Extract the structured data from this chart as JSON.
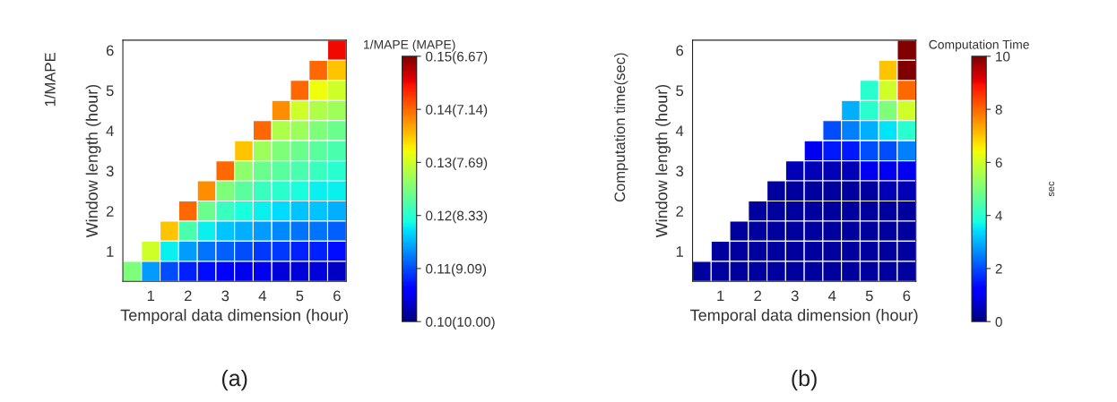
{
  "chart_data": [
    {
      "type": "heatmap",
      "title": "(a)",
      "xlabel": "Temporal data dimension (hour)",
      "ylabel": "Window length (hour)",
      "clabel": "1/MAPE (MAPE)",
      "annotations": [
        "1/MAPE"
      ],
      "categories": [
        null,
        "1",
        null,
        "2",
        null,
        "3",
        null,
        "4",
        null,
        "5",
        null,
        "6"
      ],
      "y_categories": [
        "6",
        null,
        "5",
        null,
        "4",
        null,
        "3",
        null,
        "2",
        null,
        "1",
        null
      ],
      "clim": [
        0.1,
        0.15
      ],
      "cticks": [
        {
          "value": 0.1,
          "label": "0.10(10.00)"
        },
        {
          "value": 0.11,
          "label": "0.11(9.09)"
        },
        {
          "value": 0.12,
          "label": "0.12(8.33)"
        },
        {
          "value": 0.13,
          "label": "0.13(7.69)"
        },
        {
          "value": 0.14,
          "label": "0.14(7.14)"
        },
        {
          "value": 0.15,
          "label": "0.15(6.67)"
        }
      ],
      "cells": [
        [
          null,
          null,
          null,
          null,
          null,
          null,
          null,
          null,
          null,
          null,
          null,
          0.145
        ],
        [
          null,
          null,
          null,
          null,
          null,
          null,
          null,
          null,
          null,
          null,
          0.14,
          0.135
        ],
        [
          null,
          null,
          null,
          null,
          null,
          null,
          null,
          null,
          null,
          0.14,
          0.132,
          0.13
        ],
        [
          null,
          null,
          null,
          null,
          null,
          null,
          null,
          null,
          0.138,
          0.13,
          0.128,
          0.127
        ],
        [
          null,
          null,
          null,
          null,
          null,
          null,
          null,
          0.14,
          0.128,
          0.127,
          0.125,
          0.124
        ],
        [
          null,
          null,
          null,
          null,
          null,
          null,
          0.135,
          0.127,
          0.125,
          0.124,
          0.123,
          0.122
        ],
        [
          null,
          null,
          null,
          null,
          null,
          0.14,
          0.126,
          0.124,
          0.123,
          0.122,
          0.121,
          0.12
        ],
        [
          null,
          null,
          null,
          null,
          0.138,
          0.125,
          0.123,
          0.121,
          0.12,
          0.119,
          0.118,
          0.118
        ],
        [
          null,
          null,
          null,
          0.14,
          0.124,
          0.121,
          0.119,
          0.118,
          0.117,
          0.116,
          0.116,
          0.115
        ],
        [
          null,
          null,
          0.135,
          0.122,
          0.118,
          0.116,
          0.115,
          0.114,
          0.113,
          0.112,
          0.112,
          0.111
        ],
        [
          null,
          0.13,
          0.118,
          0.114,
          0.112,
          0.111,
          0.11,
          0.109,
          0.109,
          0.108,
          0.108,
          0.107
        ],
        [
          0.125,
          0.114,
          0.11,
          0.108,
          0.107,
          0.106,
          0.105,
          0.105,
          0.104,
          0.104,
          0.104,
          0.103
        ]
      ]
    },
    {
      "type": "heatmap",
      "title": "(b)",
      "xlabel": "Temporal data dimension (hour)",
      "ylabel": "Window length (hour)",
      "clabel": "Computation Time",
      "annotations": [
        "Computation time(sec)",
        "sec"
      ],
      "categories": [
        null,
        "1",
        null,
        "2",
        null,
        "3",
        null,
        "4",
        null,
        "5",
        null,
        "6"
      ],
      "y_categories": [
        "6",
        null,
        "5",
        null,
        "4",
        null,
        "3",
        null,
        "2",
        null,
        "1",
        null
      ],
      "clim": [
        0,
        10
      ],
      "cticks": [
        0,
        2,
        4,
        6,
        8,
        10
      ],
      "cells": [
        [
          null,
          null,
          null,
          null,
          null,
          null,
          null,
          null,
          null,
          null,
          null,
          10
        ],
        [
          null,
          null,
          null,
          null,
          null,
          null,
          null,
          null,
          null,
          null,
          7,
          10
        ],
        [
          null,
          null,
          null,
          null,
          null,
          null,
          null,
          null,
          null,
          4,
          6,
          8
        ],
        [
          null,
          null,
          null,
          null,
          null,
          null,
          null,
          null,
          3,
          4,
          5,
          6
        ],
        [
          null,
          null,
          null,
          null,
          null,
          null,
          null,
          2,
          2.5,
          3,
          3.5,
          4
        ],
        [
          null,
          null,
          null,
          null,
          null,
          null,
          1,
          1.5,
          1.5,
          2,
          2,
          2.5
        ],
        [
          null,
          null,
          null,
          null,
          null,
          0.5,
          0.5,
          0.5,
          0.5,
          1,
          1,
          1
        ],
        [
          null,
          null,
          null,
          null,
          0.3,
          0.3,
          0.3,
          0.3,
          0.3,
          0.3,
          0.5,
          0.5
        ],
        [
          null,
          null,
          null,
          0.3,
          0.3,
          0.3,
          0.3,
          0.3,
          0.3,
          0.3,
          0.3,
          0.3
        ],
        [
          null,
          null,
          0.3,
          0.3,
          0.3,
          0.3,
          0.3,
          0.3,
          0.3,
          0.3,
          0.3,
          0.3
        ],
        [
          null,
          0.3,
          0.3,
          0.3,
          0.3,
          0.3,
          0.3,
          0.3,
          0.3,
          0.3,
          0.3,
          0.3
        ],
        [
          0.3,
          0.3,
          0.3,
          0.3,
          0.3,
          0.3,
          0.3,
          0.3,
          0.3,
          0.3,
          0.3,
          0.3
        ]
      ]
    }
  ]
}
